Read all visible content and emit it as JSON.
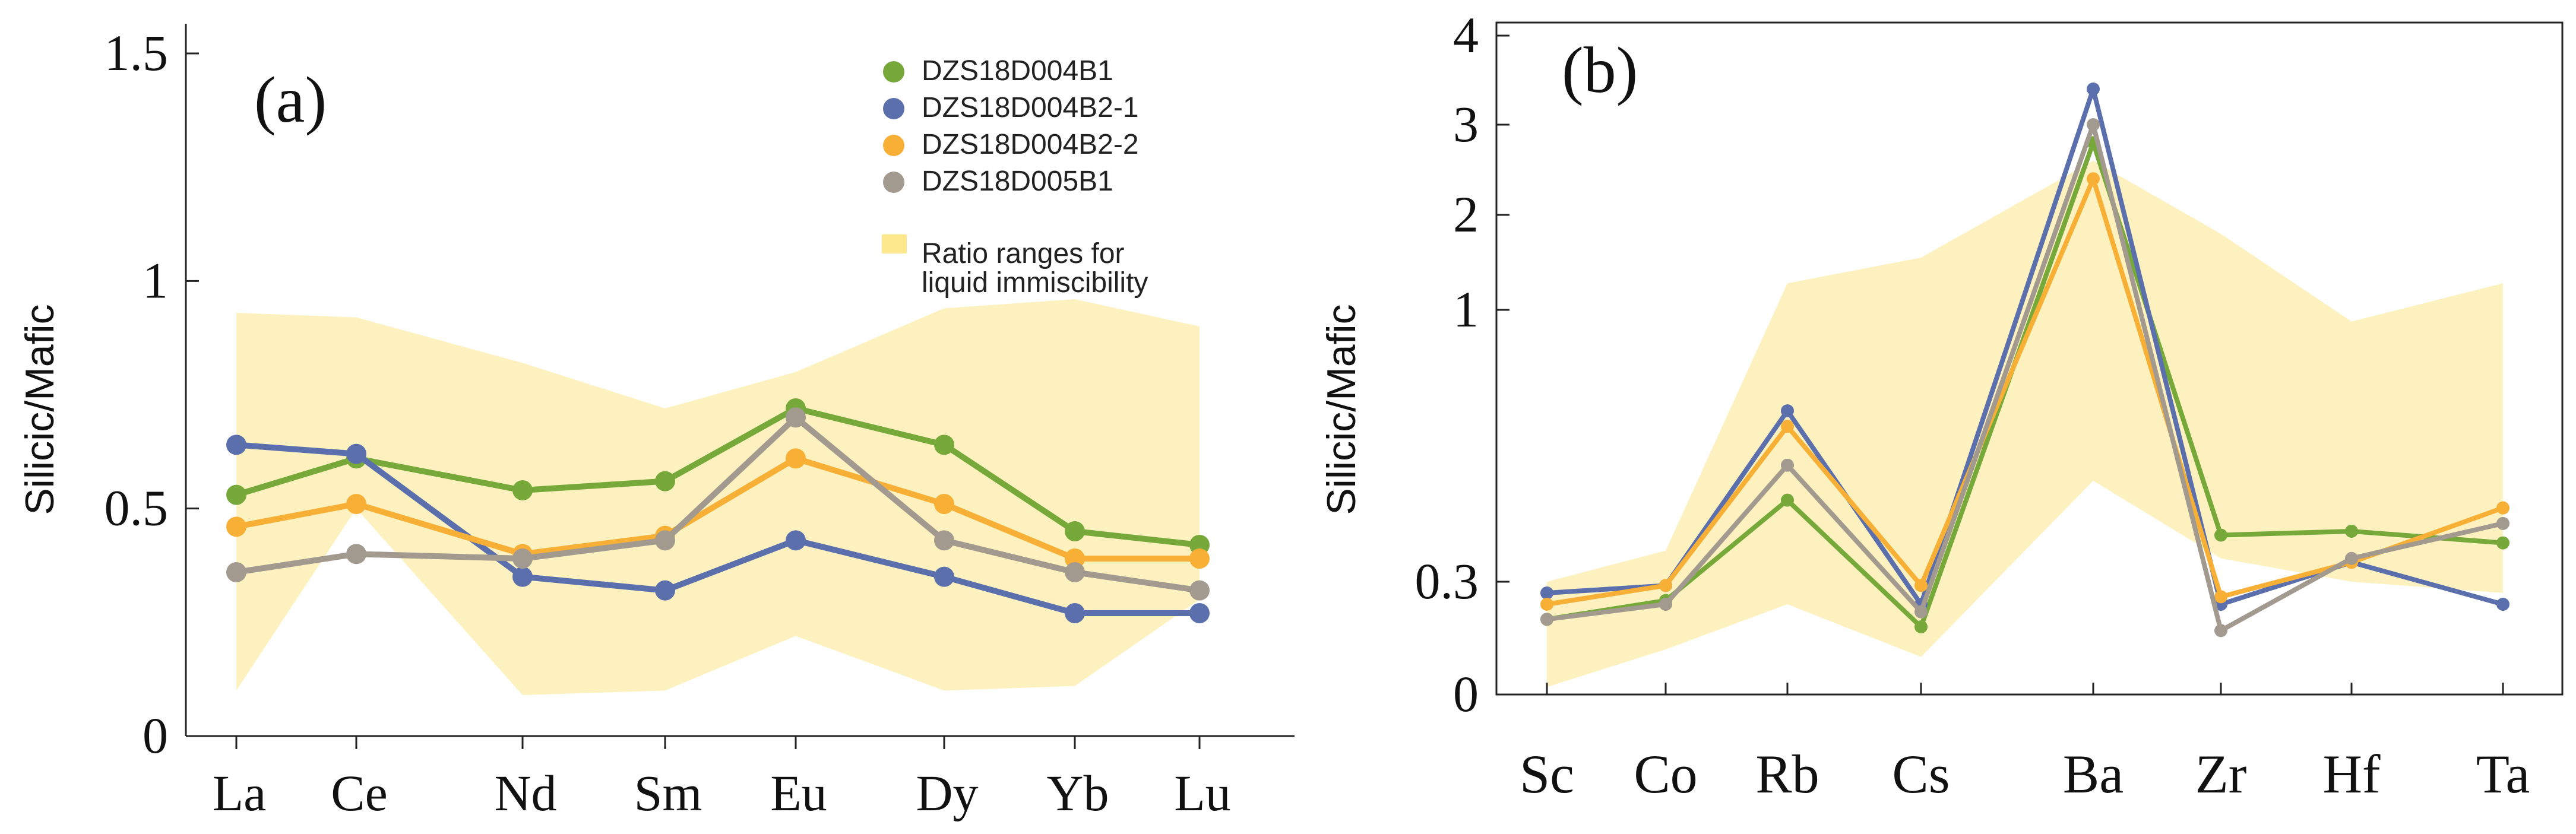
{
  "chart_data": [
    {
      "type": "line",
      "panel_label": "(a)",
      "ylabel": "Silicic/Mafic",
      "xlabel": "",
      "categories": [
        "La",
        "Ce",
        "Nd",
        "Sm",
        "Eu",
        "Dy",
        "Yb",
        "Lu"
      ],
      "y_ticks": [
        0,
        0.5,
        1,
        1.5
      ],
      "y_tick_labels": [
        "0",
        "0.5",
        "1",
        "1.5"
      ],
      "ylim": [
        0,
        1.5
      ],
      "range_band": {
        "name": "Ratio ranges for liquid immiscibility",
        "upper": [
          0.93,
          0.92,
          0.82,
          0.72,
          0.8,
          0.94,
          0.96,
          0.9
        ],
        "lower": [
          0.1,
          0.5,
          0.09,
          0.1,
          0.22,
          0.1,
          0.11,
          0.3
        ]
      },
      "series": [
        {
          "name": "DZS18D004B1",
          "color": "#76a93a",
          "values": [
            0.53,
            0.61,
            0.54,
            0.56,
            0.72,
            0.64,
            0.45,
            0.42
          ]
        },
        {
          "name": "DZS18D004B2-1",
          "color": "#5b6fad",
          "values": [
            0.64,
            0.62,
            0.35,
            0.32,
            0.43,
            0.35,
            0.27,
            0.27
          ]
        },
        {
          "name": "DZS18D004B2-2",
          "color": "#f7b035",
          "values": [
            0.46,
            0.51,
            0.4,
            0.44,
            0.61,
            0.51,
            0.39,
            0.39
          ]
        },
        {
          "name": "DZS18D005B1",
          "color": "#a39a8f",
          "values": [
            0.36,
            0.4,
            0.39,
            0.43,
            0.7,
            0.43,
            0.36,
            0.32
          ]
        }
      ],
      "legend": {
        "position": "top-right",
        "entries": [
          "DZS18D004B1",
          "DZS18D004B2-1",
          "DZS18D004B2-2",
          "DZS18D005B1"
        ],
        "band_label_line1": "Ratio ranges for",
        "band_label_line2": "liquid immiscibility"
      }
    },
    {
      "type": "line",
      "panel_label": "(b)",
      "ylabel": "Silicic/Mafic",
      "xlabel": "",
      "categories": [
        "Sc",
        "Co",
        "Rb",
        "Cs",
        "Ba",
        "Zr",
        "Hf",
        "Ta"
      ],
      "y_scale": "log-like (non-linear)",
      "y_ticks": [
        0,
        0.3,
        1,
        2,
        3,
        4
      ],
      "y_tick_labels": [
        "0",
        "0.3",
        "1",
        "2",
        "3",
        "4"
      ],
      "ylim": [
        0,
        4
      ],
      "range_band": {
        "name": "Ratio ranges for liquid immiscibility",
        "upper": [
          0.3,
          0.38,
          1.28,
          1.55,
          2.6,
          1.8,
          0.97,
          1.28
        ],
        "lower": [
          0.02,
          0.12,
          0.24,
          0.1,
          0.56,
          0.36,
          0.3,
          0.27
        ]
      },
      "series": [
        {
          "name": "DZS18D004B1",
          "color": "#76a93a",
          "values": [
            0.2,
            0.25,
            0.51,
            0.18,
            2.8,
            0.42,
            0.43,
            0.4
          ]
        },
        {
          "name": "DZS18D004B2-1",
          "color": "#5b6fad",
          "values": [
            0.27,
            0.29,
            0.74,
            0.24,
            3.4,
            0.24,
            0.35,
            0.24
          ]
        },
        {
          "name": "DZS18D004B2-2",
          "color": "#f7b035",
          "values": [
            0.24,
            0.29,
            0.7,
            0.29,
            2.4,
            0.26,
            0.35,
            0.49
          ]
        },
        {
          "name": "DZS18D005B1",
          "color": "#a39a8f",
          "values": [
            0.2,
            0.24,
            0.6,
            0.22,
            3.0,
            0.17,
            0.36,
            0.45
          ]
        }
      ]
    }
  ]
}
